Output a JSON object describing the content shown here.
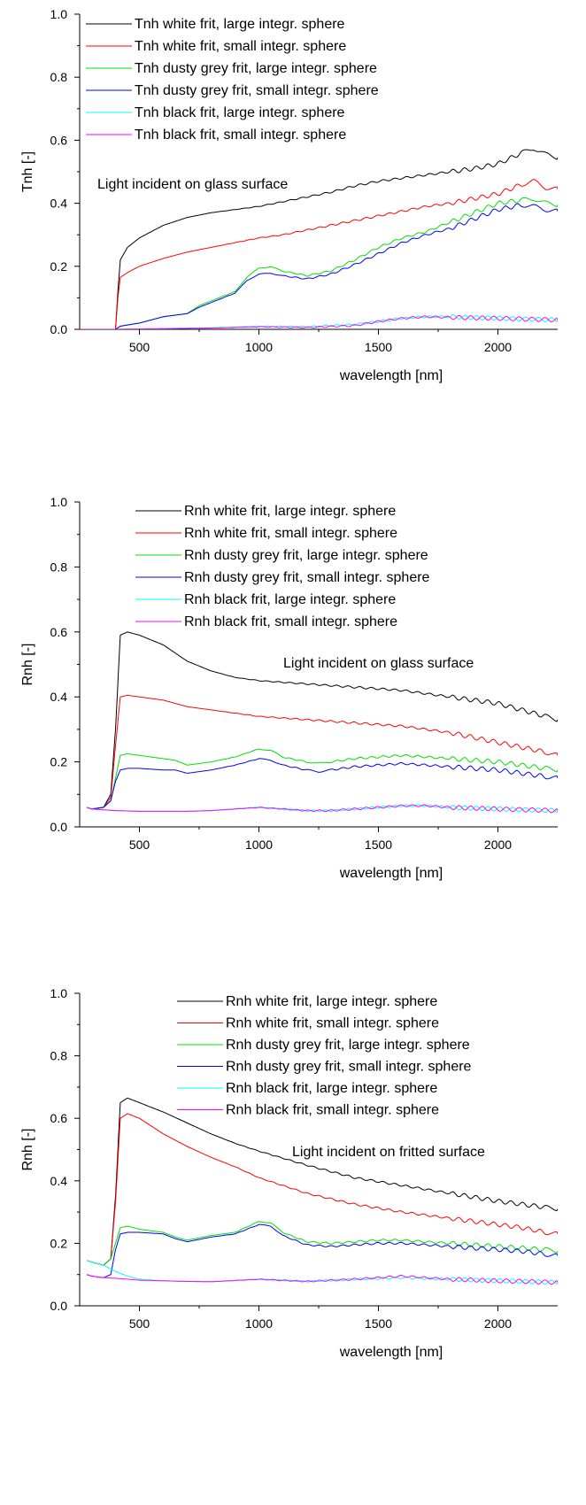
{
  "chart_data": [
    {
      "type": "line",
      "ylabel": "Tnh [-]",
      "xlabel": "wavelength [nm]",
      "xlim": [
        250,
        2250
      ],
      "ylim": [
        0,
        1.0
      ],
      "x_ticks": [
        500,
        1000,
        1500,
        2000
      ],
      "y_ticks": [
        0.0,
        0.2,
        0.4,
        0.6,
        0.8,
        1.0
      ],
      "legend_position": "top-left",
      "annotation": "Light incident on glass surface",
      "series": [
        {
          "name": "Tnh white frit, large integr. sphere",
          "color": "#000000",
          "x": [
            250,
            400,
            410,
            420,
            450,
            500,
            600,
            700,
            800,
            900,
            1000,
            1100,
            1200,
            1300,
            1400,
            1500,
            1600,
            1700,
            1800,
            1900,
            2000,
            2100,
            2150,
            2200,
            2250
          ],
          "y": [
            0.0,
            0.0,
            0.12,
            0.22,
            0.26,
            0.29,
            0.33,
            0.355,
            0.37,
            0.38,
            0.39,
            0.405,
            0.42,
            0.435,
            0.455,
            0.47,
            0.48,
            0.49,
            0.5,
            0.51,
            0.525,
            0.56,
            0.575,
            0.555,
            0.545
          ]
        },
        {
          "name": "Tnh white frit, small integr. sphere",
          "color": "#ff0000",
          "x": [
            250,
            400,
            410,
            420,
            450,
            500,
            600,
            700,
            800,
            900,
            1000,
            1100,
            1200,
            1300,
            1400,
            1500,
            1600,
            1700,
            1800,
            1900,
            2000,
            2100,
            2150,
            2200,
            2250
          ],
          "y": [
            0.0,
            0.0,
            0.1,
            0.165,
            0.18,
            0.2,
            0.225,
            0.245,
            0.26,
            0.275,
            0.29,
            0.3,
            0.315,
            0.33,
            0.345,
            0.36,
            0.375,
            0.39,
            0.4,
            0.415,
            0.43,
            0.46,
            0.47,
            0.45,
            0.445
          ]
        },
        {
          "name": "Tnh dusty grey frit, large integr. sphere",
          "color": "#00e000",
          "x": [
            250,
            400,
            420,
            500,
            600,
            700,
            750,
            800,
            900,
            950,
            1000,
            1050,
            1100,
            1200,
            1300,
            1400,
            1500,
            1600,
            1700,
            1800,
            1900,
            2000,
            2100,
            2150,
            2200,
            2250
          ],
          "y": [
            0.0,
            0.0,
            0.01,
            0.02,
            0.04,
            0.05,
            0.075,
            0.09,
            0.12,
            0.165,
            0.195,
            0.198,
            0.185,
            0.17,
            0.185,
            0.22,
            0.26,
            0.29,
            0.31,
            0.34,
            0.37,
            0.4,
            0.41,
            0.415,
            0.4,
            0.395
          ]
        },
        {
          "name": "Tnh dusty grey frit, small integr. sphere",
          "color": "#0000ff",
          "x": [
            250,
            400,
            420,
            500,
            600,
            700,
            750,
            800,
            900,
            950,
            1000,
            1050,
            1100,
            1200,
            1300,
            1400,
            1500,
            1600,
            1700,
            1800,
            1900,
            2000,
            2100,
            2150,
            2200,
            2250
          ],
          "y": [
            0.0,
            0.0,
            0.01,
            0.02,
            0.04,
            0.05,
            0.07,
            0.085,
            0.115,
            0.155,
            0.175,
            0.178,
            0.17,
            0.16,
            0.175,
            0.205,
            0.24,
            0.275,
            0.3,
            0.32,
            0.35,
            0.38,
            0.395,
            0.39,
            0.38,
            0.375
          ]
        },
        {
          "name": "Tnh black frit, large integr. sphere",
          "color": "#00ffff",
          "x": [
            250,
            400,
            800,
            1000,
            1200,
            1400,
            1500,
            1600,
            1700,
            1800,
            2000,
            2250
          ],
          "y": [
            0.0,
            0.0,
            0.005,
            0.01,
            0.008,
            0.015,
            0.025,
            0.035,
            0.04,
            0.04,
            0.035,
            0.03
          ]
        },
        {
          "name": "Tnh black frit, small integr. sphere",
          "color": "#ff00ff",
          "x": [
            250,
            400,
            800,
            1000,
            1200,
            1400,
            1500,
            1600,
            1700,
            1800,
            2000,
            2250
          ],
          "y": [
            0.0,
            0.0,
            0.004,
            0.008,
            0.006,
            0.012,
            0.025,
            0.035,
            0.04,
            0.038,
            0.035,
            0.03
          ]
        }
      ]
    },
    {
      "type": "line",
      "ylabel": "Rnh [-]",
      "xlabel": "wavelength [nm]",
      "xlim": [
        250,
        2250
      ],
      "ylim": [
        0,
        1.0
      ],
      "x_ticks": [
        500,
        1000,
        1500,
        2000
      ],
      "y_ticks": [
        0.0,
        0.2,
        0.4,
        0.6,
        0.8,
        1.0
      ],
      "legend_position": "top-center",
      "annotation": "Light incident on glass surface",
      "series": [
        {
          "name": "Rnh white frit, large integr. sphere",
          "color": "#000000",
          "x": [
            280,
            300,
            350,
            380,
            400,
            420,
            450,
            500,
            600,
            700,
            800,
            900,
            1000,
            1200,
            1400,
            1600,
            1800,
            2000,
            2100,
            2200,
            2250
          ],
          "y": [
            0.06,
            0.055,
            0.06,
            0.1,
            0.3,
            0.59,
            0.6,
            0.59,
            0.56,
            0.51,
            0.48,
            0.46,
            0.45,
            0.44,
            0.43,
            0.42,
            0.4,
            0.38,
            0.36,
            0.34,
            0.33
          ]
        },
        {
          "name": "Rnh white frit, small integr. sphere",
          "color": "#ff0000",
          "x": [
            280,
            300,
            350,
            380,
            400,
            420,
            450,
            500,
            600,
            700,
            800,
            900,
            1000,
            1200,
            1400,
            1600,
            1800,
            2000,
            2100,
            2200,
            2250
          ],
          "y": [
            0.06,
            0.055,
            0.06,
            0.09,
            0.25,
            0.4,
            0.405,
            0.4,
            0.39,
            0.37,
            0.36,
            0.35,
            0.34,
            0.33,
            0.32,
            0.31,
            0.29,
            0.26,
            0.245,
            0.23,
            0.22
          ]
        },
        {
          "name": "Rnh dusty grey frit, large integr. sphere",
          "color": "#00e000",
          "x": [
            280,
            300,
            350,
            380,
            400,
            420,
            450,
            500,
            600,
            650,
            700,
            800,
            900,
            1000,
            1050,
            1100,
            1200,
            1250,
            1300,
            1400,
            1500,
            1600,
            1700,
            1800,
            1900,
            2000,
            2100,
            2200,
            2250
          ],
          "y": [
            0.06,
            0.055,
            0.06,
            0.08,
            0.15,
            0.22,
            0.225,
            0.22,
            0.21,
            0.205,
            0.19,
            0.2,
            0.215,
            0.24,
            0.235,
            0.215,
            0.2,
            0.195,
            0.2,
            0.21,
            0.215,
            0.22,
            0.215,
            0.21,
            0.205,
            0.2,
            0.19,
            0.18,
            0.175
          ]
        },
        {
          "name": "Rnh dusty grey frit, small integr. sphere",
          "color": "#0000ff",
          "x": [
            280,
            300,
            350,
            380,
            400,
            420,
            450,
            500,
            600,
            650,
            700,
            800,
            900,
            1000,
            1050,
            1100,
            1200,
            1250,
            1300,
            1400,
            1500,
            1600,
            1700,
            1800,
            1900,
            2000,
            2100,
            2200,
            2250
          ],
          "y": [
            0.06,
            0.055,
            0.06,
            0.08,
            0.14,
            0.175,
            0.18,
            0.18,
            0.175,
            0.175,
            0.165,
            0.175,
            0.19,
            0.21,
            0.205,
            0.19,
            0.175,
            0.17,
            0.175,
            0.185,
            0.19,
            0.195,
            0.19,
            0.185,
            0.18,
            0.175,
            0.165,
            0.155,
            0.15
          ]
        },
        {
          "name": "Rnh black frit, large integr. sphere",
          "color": "#00ffff",
          "x": [
            280,
            300,
            400,
            500,
            700,
            800,
            900,
            1000,
            1100,
            1200,
            1300,
            1400,
            1500,
            1600,
            1700,
            1800,
            2000,
            2250
          ],
          "y": [
            0.06,
            0.055,
            0.05,
            0.048,
            0.048,
            0.05,
            0.055,
            0.06,
            0.055,
            0.05,
            0.05,
            0.055,
            0.06,
            0.065,
            0.065,
            0.06,
            0.055,
            0.05
          ]
        },
        {
          "name": "Rnh black frit, small integr. sphere",
          "color": "#ff00ff",
          "x": [
            280,
            300,
            400,
            500,
            700,
            800,
            900,
            1000,
            1100,
            1200,
            1300,
            1400,
            1500,
            1600,
            1700,
            1800,
            2000,
            2250
          ],
          "y": [
            0.06,
            0.055,
            0.05,
            0.048,
            0.048,
            0.05,
            0.055,
            0.06,
            0.055,
            0.05,
            0.05,
            0.055,
            0.06,
            0.065,
            0.065,
            0.06,
            0.055,
            0.05
          ]
        }
      ]
    },
    {
      "type": "line",
      "ylabel": "Rnh [-]",
      "xlabel": "wavelength [nm]",
      "xlim": [
        250,
        2250
      ],
      "ylim": [
        0,
        1.0
      ],
      "x_ticks": [
        500,
        1000,
        1500,
        2000
      ],
      "y_ticks": [
        0.0,
        0.2,
        0.4,
        0.6,
        0.8,
        1.0
      ],
      "legend_position": "top-right",
      "annotation": "Light incident on fritted surface",
      "series": [
        {
          "name": "Rnh white frit, large integr. sphere",
          "color": "#000000",
          "x": [
            280,
            300,
            350,
            380,
            400,
            420,
            450,
            500,
            600,
            700,
            800,
            900,
            1000,
            1200,
            1400,
            1600,
            1800,
            2000,
            2100,
            2200,
            2250
          ],
          "y": [
            0.145,
            0.14,
            0.13,
            0.15,
            0.35,
            0.65,
            0.665,
            0.65,
            0.62,
            0.585,
            0.55,
            0.52,
            0.495,
            0.45,
            0.41,
            0.385,
            0.36,
            0.335,
            0.325,
            0.315,
            0.31
          ]
        },
        {
          "name": "Rnh white frit, small integr. sphere",
          "color": "#ff0000",
          "x": [
            280,
            300,
            350,
            380,
            400,
            420,
            450,
            500,
            600,
            700,
            800,
            900,
            1000,
            1200,
            1400,
            1600,
            1800,
            2000,
            2100,
            2200,
            2250
          ],
          "y": [
            0.145,
            0.14,
            0.13,
            0.15,
            0.33,
            0.6,
            0.615,
            0.6,
            0.55,
            0.51,
            0.475,
            0.445,
            0.41,
            0.36,
            0.325,
            0.3,
            0.28,
            0.26,
            0.25,
            0.235,
            0.23
          ]
        },
        {
          "name": "Rnh dusty grey frit, large integr. sphere",
          "color": "#00e000",
          "x": [
            280,
            300,
            350,
            380,
            400,
            420,
            450,
            500,
            600,
            650,
            700,
            800,
            900,
            1000,
            1050,
            1100,
            1200,
            1300,
            1400,
            1500,
            1600,
            1700,
            1800,
            2000,
            2100,
            2200,
            2250
          ],
          "y": [
            0.145,
            0.14,
            0.13,
            0.15,
            0.2,
            0.25,
            0.255,
            0.245,
            0.235,
            0.22,
            0.21,
            0.225,
            0.235,
            0.27,
            0.265,
            0.235,
            0.205,
            0.2,
            0.205,
            0.21,
            0.21,
            0.205,
            0.2,
            0.19,
            0.185,
            0.18,
            0.175
          ]
        },
        {
          "name": "Rnh dusty grey frit, small integr. sphere",
          "color": "#0000ff",
          "x": [
            280,
            300,
            350,
            380,
            400,
            420,
            450,
            500,
            600,
            650,
            700,
            800,
            900,
            1000,
            1050,
            1100,
            1200,
            1300,
            1400,
            1500,
            1600,
            1700,
            1800,
            2000,
            2100,
            2200,
            2250
          ],
          "y": [
            0.1,
            0.095,
            0.09,
            0.1,
            0.18,
            0.23,
            0.235,
            0.235,
            0.23,
            0.215,
            0.205,
            0.22,
            0.23,
            0.26,
            0.255,
            0.225,
            0.195,
            0.19,
            0.195,
            0.2,
            0.2,
            0.195,
            0.19,
            0.18,
            0.175,
            0.165,
            0.16
          ]
        },
        {
          "name": "Rnh black frit, large integr. sphere",
          "color": "#00ffff",
          "x": [
            280,
            300,
            350,
            400,
            450,
            500,
            600,
            700,
            800,
            1000,
            1200,
            1400,
            1600,
            1800,
            2000,
            2250
          ],
          "y": [
            0.145,
            0.14,
            0.13,
            0.11,
            0.095,
            0.085,
            0.08,
            0.078,
            0.077,
            0.085,
            0.078,
            0.085,
            0.09,
            0.085,
            0.08,
            0.075
          ]
        },
        {
          "name": "Rnh black frit, small integr. sphere",
          "color": "#ff00ff",
          "x": [
            280,
            300,
            350,
            400,
            450,
            500,
            600,
            700,
            800,
            1000,
            1200,
            1400,
            1600,
            1800,
            2000,
            2250
          ],
          "y": [
            0.1,
            0.095,
            0.09,
            0.088,
            0.085,
            0.082,
            0.08,
            0.078,
            0.077,
            0.085,
            0.078,
            0.085,
            0.095,
            0.085,
            0.08,
            0.075
          ]
        }
      ]
    }
  ]
}
